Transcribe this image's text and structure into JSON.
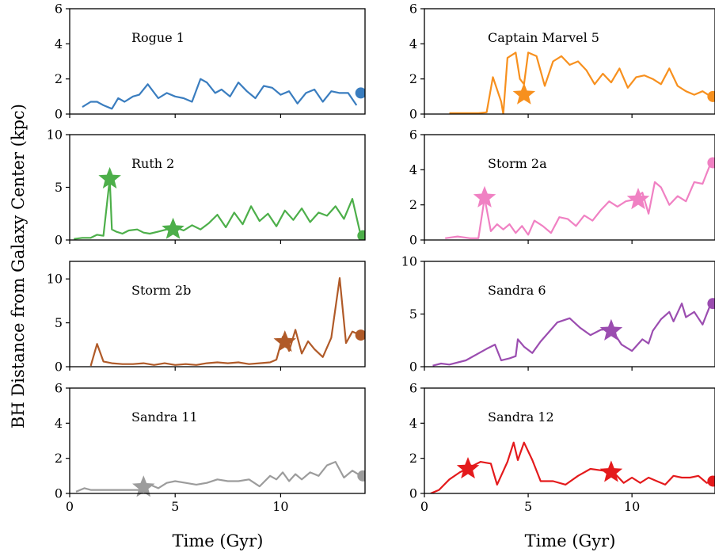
{
  "chart_data": {
    "type": "line",
    "ylabel": "BH Distance from Galaxy Center (kpc)",
    "xlabel": "Time (Gyr)",
    "xlim": [
      0,
      14
    ],
    "xticks": [
      0,
      5,
      10
    ],
    "panels": [
      {
        "title": "Rogue 1",
        "color": "#3a7dbf",
        "ylim": [
          0,
          6
        ],
        "yticks": [
          0,
          2,
          4,
          6
        ],
        "x": [
          0.6,
          1.0,
          1.3,
          1.6,
          2.0,
          2.3,
          2.6,
          3.0,
          3.3,
          3.7,
          4.2,
          4.6,
          5.0,
          5.4,
          5.8,
          6.2,
          6.5,
          6.9,
          7.2,
          7.6,
          8.0,
          8.4,
          8.8,
          9.2,
          9.6,
          10.0,
          10.4,
          10.8,
          11.2,
          11.6,
          12.0,
          12.4,
          12.8,
          13.2,
          13.6
        ],
        "y": [
          0.4,
          0.7,
          0.7,
          0.5,
          0.3,
          0.9,
          0.7,
          1.0,
          1.1,
          1.7,
          0.9,
          1.2,
          1.0,
          0.9,
          0.7,
          2.0,
          1.8,
          1.2,
          1.4,
          1.0,
          1.8,
          1.3,
          0.9,
          1.6,
          1.5,
          1.1,
          1.3,
          0.6,
          1.2,
          1.4,
          0.7,
          1.3,
          1.2,
          1.2,
          0.5
        ],
        "markers": [
          {
            "type": "circle",
            "x": 13.8,
            "y": 1.2
          }
        ]
      },
      {
        "title": "Captain Marvel 5",
        "color": "#f7901e",
        "ylim": [
          0,
          6
        ],
        "yticks": [
          0,
          2,
          4,
          6
        ],
        "x": [
          1.2,
          2.0,
          2.6,
          3.0,
          3.3,
          3.7,
          3.8,
          4.0,
          4.4,
          4.6,
          4.8,
          5.0,
          5.4,
          5.8,
          6.2,
          6.6,
          7.0,
          7.4,
          7.8,
          8.2,
          8.6,
          9.0,
          9.4,
          9.8,
          10.2,
          10.6,
          11.0,
          11.4,
          11.8,
          12.2,
          12.6,
          13.0,
          13.4,
          13.8
        ],
        "y": [
          0.05,
          0.05,
          0.05,
          0.1,
          2.1,
          0.7,
          0.0,
          3.2,
          3.5,
          2.0,
          1.7,
          3.5,
          3.3,
          1.6,
          3.0,
          3.3,
          2.8,
          3.0,
          2.5,
          1.7,
          2.3,
          1.8,
          2.6,
          1.5,
          2.1,
          2.2,
          2.0,
          1.7,
          2.6,
          1.6,
          1.3,
          1.1,
          1.3,
          1.0
        ],
        "markers": [
          {
            "type": "star",
            "x": 4.8,
            "y": 1.1
          },
          {
            "type": "circle",
            "x": 13.9,
            "y": 1.0
          }
        ]
      },
      {
        "title": "Ruth 2",
        "color": "#4daf4a",
        "ylim": [
          0,
          10
        ],
        "yticks": [
          0,
          5,
          10
        ],
        "x": [
          0.2,
          0.6,
          1.0,
          1.3,
          1.6,
          1.9,
          2.0,
          2.2,
          2.5,
          2.8,
          3.2,
          3.5,
          3.8,
          4.2,
          4.6,
          5.0,
          5.4,
          5.8,
          6.2,
          6.6,
          7.0,
          7.4,
          7.8,
          8.2,
          8.6,
          9.0,
          9.4,
          9.8,
          10.2,
          10.6,
          11.0,
          11.4,
          11.8,
          12.2,
          12.6,
          13.0,
          13.4,
          13.8
        ],
        "y": [
          0.1,
          0.2,
          0.2,
          0.5,
          0.4,
          5.8,
          1.0,
          0.8,
          0.6,
          0.9,
          1.0,
          0.7,
          0.6,
          0.8,
          1.0,
          1.2,
          0.9,
          1.4,
          1.0,
          1.6,
          2.4,
          1.2,
          2.6,
          1.5,
          3.2,
          1.8,
          2.5,
          1.3,
          2.8,
          1.9,
          3.0,
          1.7,
          2.6,
          2.3,
          3.2,
          2.0,
          3.9,
          0.4
        ],
        "markers": [
          {
            "type": "star",
            "x": 1.9,
            "y": 5.8
          },
          {
            "type": "star",
            "x": 4.9,
            "y": 1.0
          },
          {
            "type": "circle",
            "x": 13.9,
            "y": 0.4
          }
        ]
      },
      {
        "title": "Storm 2a",
        "color": "#f081c3",
        "ylim": [
          0,
          6
        ],
        "yticks": [
          0,
          2,
          4,
          6
        ],
        "x": [
          1.0,
          1.6,
          2.2,
          2.6,
          2.9,
          3.2,
          3.5,
          3.8,
          4.1,
          4.4,
          4.7,
          5.0,
          5.3,
          5.7,
          6.1,
          6.5,
          6.9,
          7.3,
          7.7,
          8.1,
          8.5,
          8.9,
          9.3,
          9.7,
          10.1,
          10.5,
          10.8,
          11.1,
          11.4,
          11.8,
          12.2,
          12.6,
          13.0,
          13.4,
          13.8
        ],
        "y": [
          0.1,
          0.2,
          0.1,
          0.1,
          2.4,
          0.5,
          0.9,
          0.6,
          0.9,
          0.4,
          0.8,
          0.3,
          1.1,
          0.8,
          0.4,
          1.3,
          1.2,
          0.8,
          1.4,
          1.1,
          1.7,
          2.2,
          1.9,
          2.2,
          2.3,
          2.7,
          1.5,
          3.3,
          3.0,
          2.0,
          2.5,
          2.2,
          3.3,
          3.2,
          4.4
        ],
        "markers": [
          {
            "type": "star",
            "x": 2.9,
            "y": 2.4
          },
          {
            "type": "star",
            "x": 10.3,
            "y": 2.3
          },
          {
            "type": "circle",
            "x": 13.9,
            "y": 4.4
          }
        ]
      },
      {
        "title": "Storm 2b",
        "color": "#b05a28",
        "ylim": [
          0,
          12
        ],
        "yticks": [
          0,
          5,
          10
        ],
        "x": [
          1.0,
          1.3,
          1.6,
          2.0,
          2.5,
          3.0,
          3.5,
          4.0,
          4.5,
          5.0,
          5.5,
          6.0,
          6.5,
          7.0,
          7.5,
          8.0,
          8.5,
          9.0,
          9.5,
          9.8,
          10.1,
          10.4,
          10.7,
          11.0,
          11.3,
          11.6,
          12.0,
          12.4,
          12.8,
          13.1,
          13.4,
          13.8
        ],
        "y": [
          0.1,
          2.6,
          0.6,
          0.4,
          0.3,
          0.3,
          0.4,
          0.2,
          0.4,
          0.2,
          0.3,
          0.2,
          0.4,
          0.5,
          0.4,
          0.5,
          0.3,
          0.4,
          0.5,
          0.8,
          3.4,
          1.8,
          4.2,
          1.5,
          2.9,
          2.0,
          1.1,
          3.3,
          10.1,
          2.7,
          4.0,
          3.6
        ],
        "markers": [
          {
            "type": "star",
            "x": 10.2,
            "y": 2.8
          },
          {
            "type": "circle",
            "x": 13.8,
            "y": 3.6
          }
        ]
      },
      {
        "title": "Sandra 6",
        "color": "#9b4db0",
        "ylim": [
          0,
          10
        ],
        "yticks": [
          0,
          5,
          10
        ],
        "x": [
          0.4,
          0.8,
          1.2,
          2.0,
          3.0,
          3.4,
          3.7,
          4.1,
          4.4,
          4.5,
          4.8,
          5.2,
          5.6,
          6.0,
          6.4,
          7.0,
          7.5,
          8.0,
          8.5,
          9.0,
          9.5,
          10.0,
          10.5,
          10.8,
          11.0,
          11.4,
          11.8,
          12.0,
          12.4,
          12.6,
          13.0,
          13.4,
          13.8
        ],
        "y": [
          0.1,
          0.3,
          0.2,
          0.6,
          1.7,
          2.1,
          0.6,
          0.8,
          1.0,
          2.6,
          1.9,
          1.3,
          2.4,
          3.3,
          4.2,
          4.6,
          3.7,
          3.0,
          3.5,
          3.6,
          2.1,
          1.5,
          2.6,
          2.2,
          3.4,
          4.5,
          5.2,
          4.3,
          6.0,
          4.7,
          5.2,
          4.0,
          6.0
        ],
        "markers": [
          {
            "type": "star",
            "x": 9.0,
            "y": 3.4
          },
          {
            "type": "circle",
            "x": 13.9,
            "y": 6.0
          }
        ]
      },
      {
        "title": "Sandra 11",
        "color": "#9c9c9c",
        "ylim": [
          0,
          6
        ],
        "yticks": [
          0,
          2,
          4,
          6
        ],
        "x": [
          0.3,
          0.7,
          1.0,
          1.5,
          2.0,
          2.5,
          3.0,
          3.4,
          3.8,
          4.2,
          4.6,
          5.0,
          5.5,
          6.0,
          6.5,
          7.0,
          7.5,
          8.0,
          8.5,
          9.0,
          9.5,
          9.8,
          10.1,
          10.4,
          10.7,
          11.0,
          11.4,
          11.8,
          12.2,
          12.6,
          13.0,
          13.4,
          13.8
        ],
        "y": [
          0.1,
          0.3,
          0.2,
          0.2,
          0.2,
          0.2,
          0.2,
          0.2,
          0.5,
          0.3,
          0.6,
          0.7,
          0.6,
          0.5,
          0.6,
          0.8,
          0.7,
          0.7,
          0.8,
          0.4,
          1.0,
          0.8,
          1.2,
          0.7,
          1.1,
          0.8,
          1.2,
          1.0,
          1.6,
          1.8,
          0.9,
          1.3,
          1.0
        ],
        "markers": [
          {
            "type": "star",
            "x": 3.5,
            "y": 0.35
          },
          {
            "type": "circle",
            "x": 13.9,
            "y": 1.0
          }
        ]
      },
      {
        "title": "Sandra 12",
        "color": "#e41a1c",
        "ylim": [
          0,
          6
        ],
        "yticks": [
          0,
          2,
          4,
          6
        ],
        "x": [
          0.3,
          0.7,
          1.2,
          1.7,
          2.2,
          2.7,
          3.2,
          3.5,
          4.0,
          4.3,
          4.5,
          4.8,
          5.2,
          5.6,
          6.2,
          6.8,
          7.4,
          8.0,
          8.6,
          9.2,
          9.6,
          10.0,
          10.4,
          10.8,
          11.2,
          11.6,
          12.0,
          12.4,
          12.8,
          13.2,
          13.6,
          13.9
        ],
        "y": [
          0.0,
          0.2,
          0.8,
          1.2,
          1.5,
          1.8,
          1.7,
          0.5,
          1.8,
          2.9,
          1.9,
          2.9,
          1.9,
          0.7,
          0.7,
          0.5,
          1.0,
          1.4,
          1.3,
          1.1,
          0.6,
          0.9,
          0.6,
          0.9,
          0.7,
          0.5,
          1.0,
          0.9,
          0.9,
          1.0,
          0.6,
          0.7
        ],
        "markers": [
          {
            "type": "star",
            "x": 2.1,
            "y": 1.4
          },
          {
            "type": "star",
            "x": 9.0,
            "y": 1.2
          },
          {
            "type": "circle",
            "x": 13.9,
            "y": 0.7
          }
        ]
      }
    ]
  }
}
